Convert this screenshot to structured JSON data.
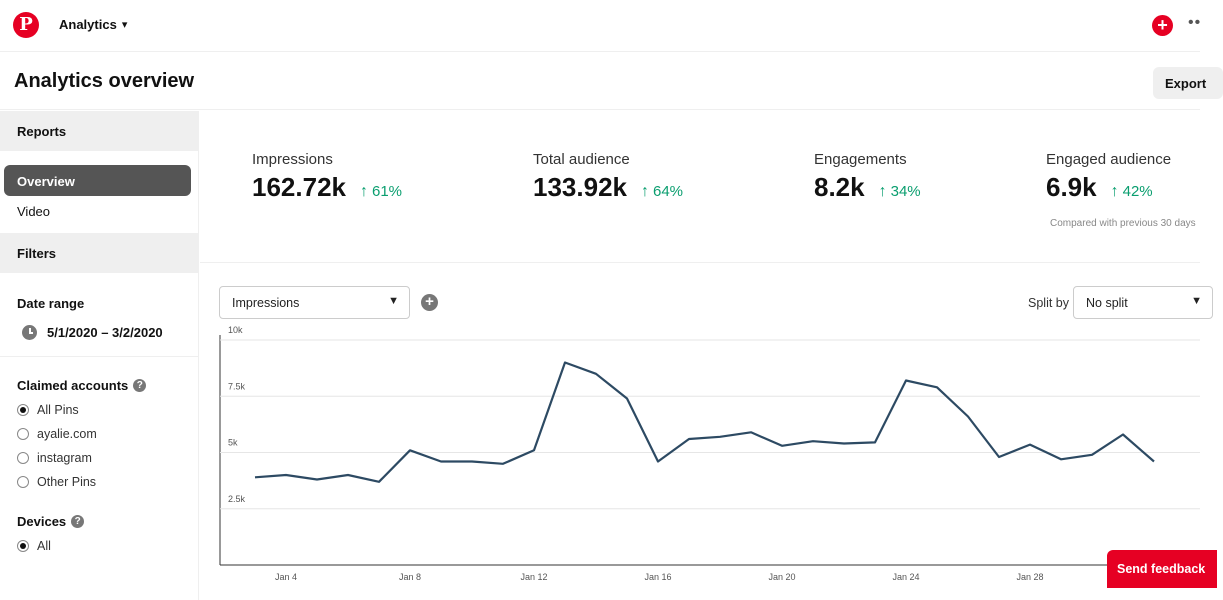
{
  "topbar": {
    "logo_letter": "P",
    "nav_label": "Analytics",
    "create_symbol": "+",
    "more_symbol": "••"
  },
  "header": {
    "title": "Analytics overview",
    "export_label": "Export"
  },
  "sidebar": {
    "reports_heading": "Reports",
    "reports_items": [
      {
        "label": "Overview",
        "active": true
      },
      {
        "label": "Video",
        "active": false
      }
    ],
    "filters_heading": "Filters",
    "date_range_label": "Date range",
    "date_range_value": "5/1/2020 – 3/2/2020",
    "claimed_accounts_label": "Claimed accounts",
    "claimed_accounts_options": [
      {
        "label": "All Pins",
        "checked": true
      },
      {
        "label": "ayalie.com",
        "checked": false
      },
      {
        "label": "instagram",
        "checked": false
      },
      {
        "label": "Other Pins",
        "checked": false
      }
    ],
    "devices_label": "Devices",
    "devices_options": [
      {
        "label": "All",
        "checked": true
      }
    ],
    "help_symbol": "?"
  },
  "metrics": [
    {
      "label": "Impressions",
      "value": "162.72k",
      "change": "61%"
    },
    {
      "label": "Total audience",
      "value": "133.92k",
      "change": "64%"
    },
    {
      "label": "Engagements",
      "value": "8.2k",
      "change": "34%"
    },
    {
      "label": "Engaged audience",
      "value": "6.9k",
      "change": "42%"
    }
  ],
  "compared_note": "Compared with previous 30 days",
  "controls": {
    "metric_select": "Impressions",
    "split_label": "Split by",
    "split_select": "No split",
    "add_symbol": "+"
  },
  "chart_data": {
    "type": "line",
    "x": [
      "Jan 3",
      "Jan 4",
      "Jan 5",
      "Jan 6",
      "Jan 7",
      "Jan 8",
      "Jan 9",
      "Jan 10",
      "Jan 11",
      "Jan 12",
      "Jan 13",
      "Jan 14",
      "Jan 15",
      "Jan 16",
      "Jan 17",
      "Jan 18",
      "Jan 19",
      "Jan 20",
      "Jan 21",
      "Jan 22",
      "Jan 23",
      "Jan 24",
      "Jan 25",
      "Jan 26",
      "Jan 27",
      "Jan 28",
      "Jan 29",
      "Jan 30",
      "Jan 31",
      "Feb 1",
      "Feb 2",
      "Feb 3"
    ],
    "series": [
      {
        "values": [
          3900,
          4000,
          3800,
          4000,
          3700,
          5100,
          4600,
          4600,
          4500,
          5100,
          9000,
          8500,
          7400,
          4600,
          5600,
          5700,
          5900,
          5300,
          5500,
          5400,
          5450,
          8200,
          7900,
          6600,
          4800,
          5350,
          4700,
          4900,
          5800,
          4600,
          null,
          null
        ]
      }
    ],
    "xtick_labels": [
      "Jan 4",
      "Jan 8",
      "Jan 12",
      "Jan 16",
      "Jan 20",
      "Jan 24",
      "Jan 28"
    ],
    "ytick_labels": [
      "2.5k",
      "5k",
      "7.5k",
      "10k"
    ],
    "yticks": [
      2500,
      5000,
      7500,
      10000
    ],
    "ylim": [
      0,
      10000
    ],
    "grid": true,
    "line_color": "#2d4a63"
  },
  "feedback_label": "Send feedback",
  "colors": {
    "brand": "#e60023",
    "positive": "#0a9e6f",
    "active_nav": "#555555"
  }
}
